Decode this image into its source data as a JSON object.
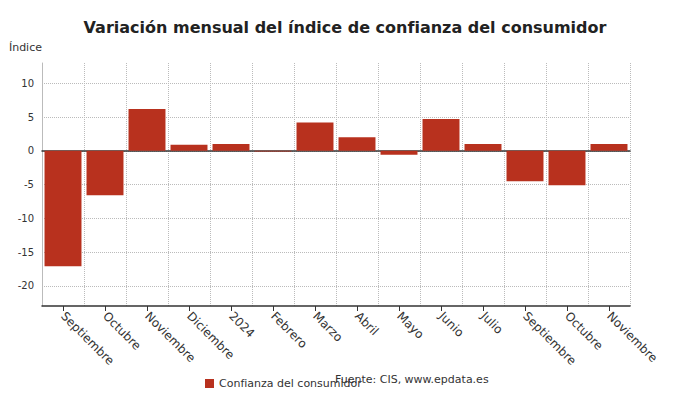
{
  "chart_data": {
    "type": "bar",
    "title": "Variación mensual del índice de confianza del consumidor",
    "ylabel": "Índice",
    "categories": [
      "Septiembre",
      "Octubre",
      "Noviembre",
      "Diciembre",
      "2024",
      "Febrero",
      "Marzo",
      "Abril",
      "Mayo",
      "Junio",
      "Julio",
      "Septiembre",
      "Octubre",
      "Noviembre"
    ],
    "series": [
      {
        "name": "Confianza del consumidor",
        "color": "#b8311e",
        "values": [
          -17.1,
          -6.6,
          6.2,
          0.9,
          1.0,
          -0.1,
          4.2,
          2.0,
          -0.6,
          4.7,
          1.0,
          -4.5,
          -5.1,
          1.0
        ]
      }
    ],
    "annotations": [
      "Fuente: CIS, www.epdata.es"
    ],
    "ylim": [
      -23,
      13
    ],
    "yticks": [
      -20,
      -15,
      -10,
      -5,
      0,
      5,
      10
    ],
    "grid": true,
    "legend": "bottom"
  }
}
